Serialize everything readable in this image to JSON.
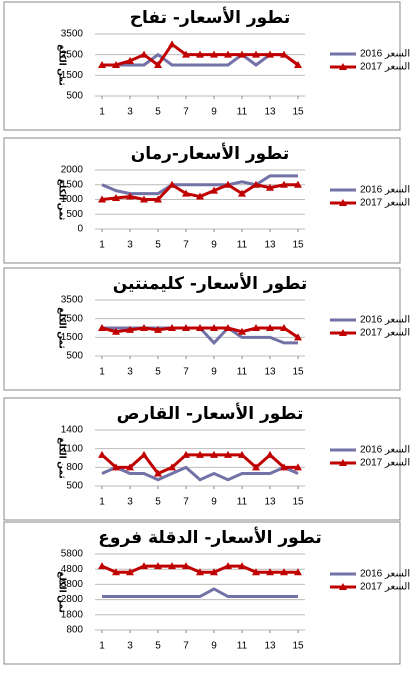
{
  "chart_data": [
    {
      "type": "line",
      "title": "تطور الأسعار- تفاح",
      "y_label": "ثمن الكلغ",
      "x": [
        1,
        2,
        3,
        4,
        5,
        6,
        7,
        8,
        9,
        10,
        11,
        12,
        13,
        14,
        15
      ],
      "xlim": [
        0.5,
        15.5
      ],
      "xticks": [
        1,
        3,
        5,
        7,
        9,
        11,
        13,
        15
      ],
      "ylim": [
        500,
        3500
      ],
      "yticks": [
        500,
        1500,
        2500,
        3500
      ],
      "grid": true,
      "series": [
        {
          "name": "السعر 2016",
          "color": "#7272a6",
          "values": [
            2000,
            2000,
            2000,
            2000,
            2500,
            2000,
            2000,
            2000,
            2000,
            2000,
            2500,
            2000,
            2500,
            2500,
            2000
          ]
        },
        {
          "name": "السعر 2017",
          "color": "#c00000",
          "values": [
            2000,
            2000,
            2200,
            2500,
            2000,
            3000,
            2500,
            2500,
            2500,
            2500,
            2500,
            2500,
            2500,
            2500,
            2000
          ]
        }
      ]
    },
    {
      "type": "line",
      "title": "تطور الأسعار-رمان",
      "y_label": "ثمن الكلغ",
      "x": [
        1,
        2,
        3,
        4,
        5,
        6,
        7,
        8,
        9,
        10,
        11,
        12,
        13,
        14,
        15
      ],
      "xlim": [
        0.5,
        15.5
      ],
      "xticks": [
        1,
        3,
        5,
        7,
        9,
        11,
        13,
        15
      ],
      "ylim": [
        0,
        2000
      ],
      "yticks": [
        0,
        500,
        1000,
        1500,
        2000
      ],
      "grid": true,
      "series": [
        {
          "name": "السعر 2016",
          "color": "#7272a6",
          "values": [
            1500,
            1300,
            1200,
            1200,
            1200,
            1500,
            1500,
            1500,
            1500,
            1500,
            1600,
            1500,
            1800,
            1800,
            1800
          ]
        },
        {
          "name": "السعر 2017",
          "color": "#c00000",
          "values": [
            1000,
            1050,
            1100,
            1000,
            1000,
            1500,
            1200,
            1100,
            1300,
            1500,
            1200,
            1500,
            1400,
            1500,
            1500
          ]
        }
      ]
    },
    {
      "type": "line",
      "title": "تطور الأسعار- كليمنتين",
      "y_label": "ثمن الكلغ",
      "x": [
        1,
        2,
        3,
        4,
        5,
        6,
        7,
        8,
        9,
        10,
        11,
        12,
        13,
        14,
        15
      ],
      "xlim": [
        0.5,
        15.5
      ],
      "xticks": [
        1,
        3,
        5,
        7,
        9,
        11,
        13,
        15
      ],
      "ylim": [
        500,
        3500
      ],
      "yticks": [
        500,
        1500,
        2500,
        3500
      ],
      "grid": true,
      "series": [
        {
          "name": "السعر 2016",
          "color": "#7272a6",
          "values": [
            2000,
            2000,
            2000,
            2000,
            2000,
            2000,
            2000,
            2000,
            1200,
            2000,
            1500,
            1500,
            1500,
            1200,
            1200
          ]
        },
        {
          "name": "السعر 2017",
          "color": "#c00000",
          "values": [
            2000,
            1800,
            1900,
            2000,
            1900,
            2000,
            2000,
            2000,
            2000,
            2000,
            1800,
            2000,
            2000,
            2000,
            1500
          ]
        }
      ]
    },
    {
      "type": "line",
      "title": "تطور الأسعار- القارص",
      "y_label": "ثمن الكلغ",
      "x": [
        1,
        2,
        3,
        4,
        5,
        6,
        7,
        8,
        9,
        10,
        11,
        12,
        13,
        14,
        15
      ],
      "xlim": [
        0.5,
        15.5
      ],
      "xticks": [
        1,
        3,
        5,
        7,
        9,
        11,
        13,
        15
      ],
      "ylim": [
        500,
        1400
      ],
      "yticks": [
        500,
        800,
        1100,
        1400
      ],
      "grid": true,
      "series": [
        {
          "name": "السعر 2016",
          "color": "#7272a6",
          "values": [
            700,
            800,
            700,
            700,
            600,
            700,
            800,
            600,
            700,
            600,
            700,
            700,
            700,
            800,
            700
          ]
        },
        {
          "name": "السعر 2017",
          "color": "#c00000",
          "values": [
            1000,
            800,
            800,
            1000,
            700,
            800,
            1000,
            1000,
            1000,
            1000,
            1000,
            800,
            1000,
            800,
            800
          ]
        }
      ]
    },
    {
      "type": "line",
      "title": "تطور الأسعار- الدقلة فروع",
      "y_label": "ثمن الكلغ",
      "x": [
        1,
        2,
        3,
        4,
        5,
        6,
        7,
        8,
        9,
        10,
        11,
        12,
        13,
        14,
        15
      ],
      "xlim": [
        0.5,
        15.5
      ],
      "xticks": [
        1,
        3,
        5,
        7,
        9,
        11,
        13,
        15
      ],
      "ylim": [
        800,
        5800
      ],
      "yticks": [
        800,
        1800,
        2800,
        3800,
        4800,
        5800
      ],
      "grid": true,
      "series": [
        {
          "name": "السعر 2016",
          "color": "#7272a6",
          "values": [
            3000,
            3000,
            3000,
            3000,
            3000,
            3000,
            3000,
            3000,
            3500,
            3000,
            3000,
            3000,
            3000,
            3000,
            3000
          ]
        },
        {
          "name": "السعر 2017",
          "color": "#c00000",
          "values": [
            5000,
            4600,
            4600,
            5000,
            5000,
            5000,
            5000,
            4600,
            4600,
            5000,
            5000,
            4600,
            4600,
            4600,
            4600
          ]
        }
      ]
    }
  ]
}
